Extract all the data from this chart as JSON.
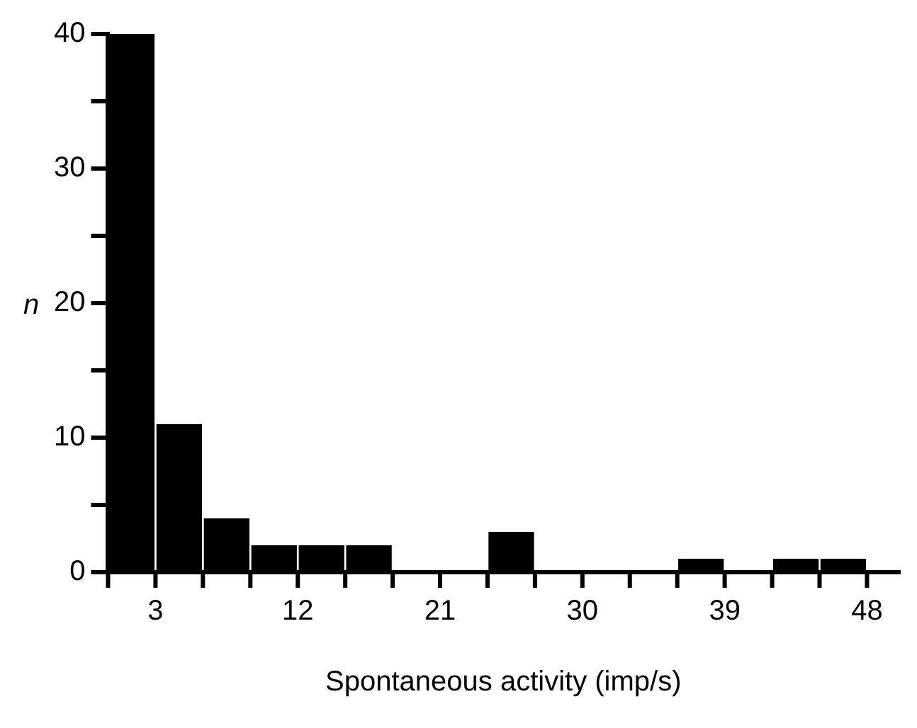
{
  "chart_data": {
    "type": "histogram",
    "xlabel": "Spontaneous activity (imp/s)",
    "ylabel": "n",
    "bins": [
      0,
      3,
      6,
      9,
      12,
      15,
      18,
      21,
      24,
      27,
      30,
      33,
      36,
      39,
      42,
      45,
      48
    ],
    "values": [
      40,
      11,
      4,
      2,
      2,
      2,
      0,
      0,
      3,
      0,
      0,
      0,
      1,
      0,
      1,
      1
    ],
    "color": "#000000",
    "xlim": [
      0,
      50
    ],
    "xticks": [
      {
        "value": 0,
        "label": null
      },
      3,
      {
        "value": 6,
        "label": null
      },
      {
        "value": 9,
        "label": null
      },
      12,
      {
        "value": 15,
        "label": null
      },
      {
        "value": 18,
        "label": null
      },
      21,
      {
        "value": 24,
        "label": null
      },
      {
        "value": 27,
        "label": null
      },
      30,
      {
        "value": 33,
        "label": null
      },
      {
        "value": 36,
        "label": null
      },
      39,
      {
        "value": 42,
        "label": null
      },
      {
        "value": 45,
        "label": null
      },
      48
    ],
    "ylim": [
      0,
      40
    ],
    "yticks": [
      0,
      {
        "value": 5,
        "label": null
      },
      10,
      {
        "value": 15,
        "label": null
      },
      20,
      {
        "value": 25,
        "label": null
      },
      30,
      {
        "value": 35,
        "label": null
      },
      40
    ],
    "grid": false,
    "legend": false
  }
}
